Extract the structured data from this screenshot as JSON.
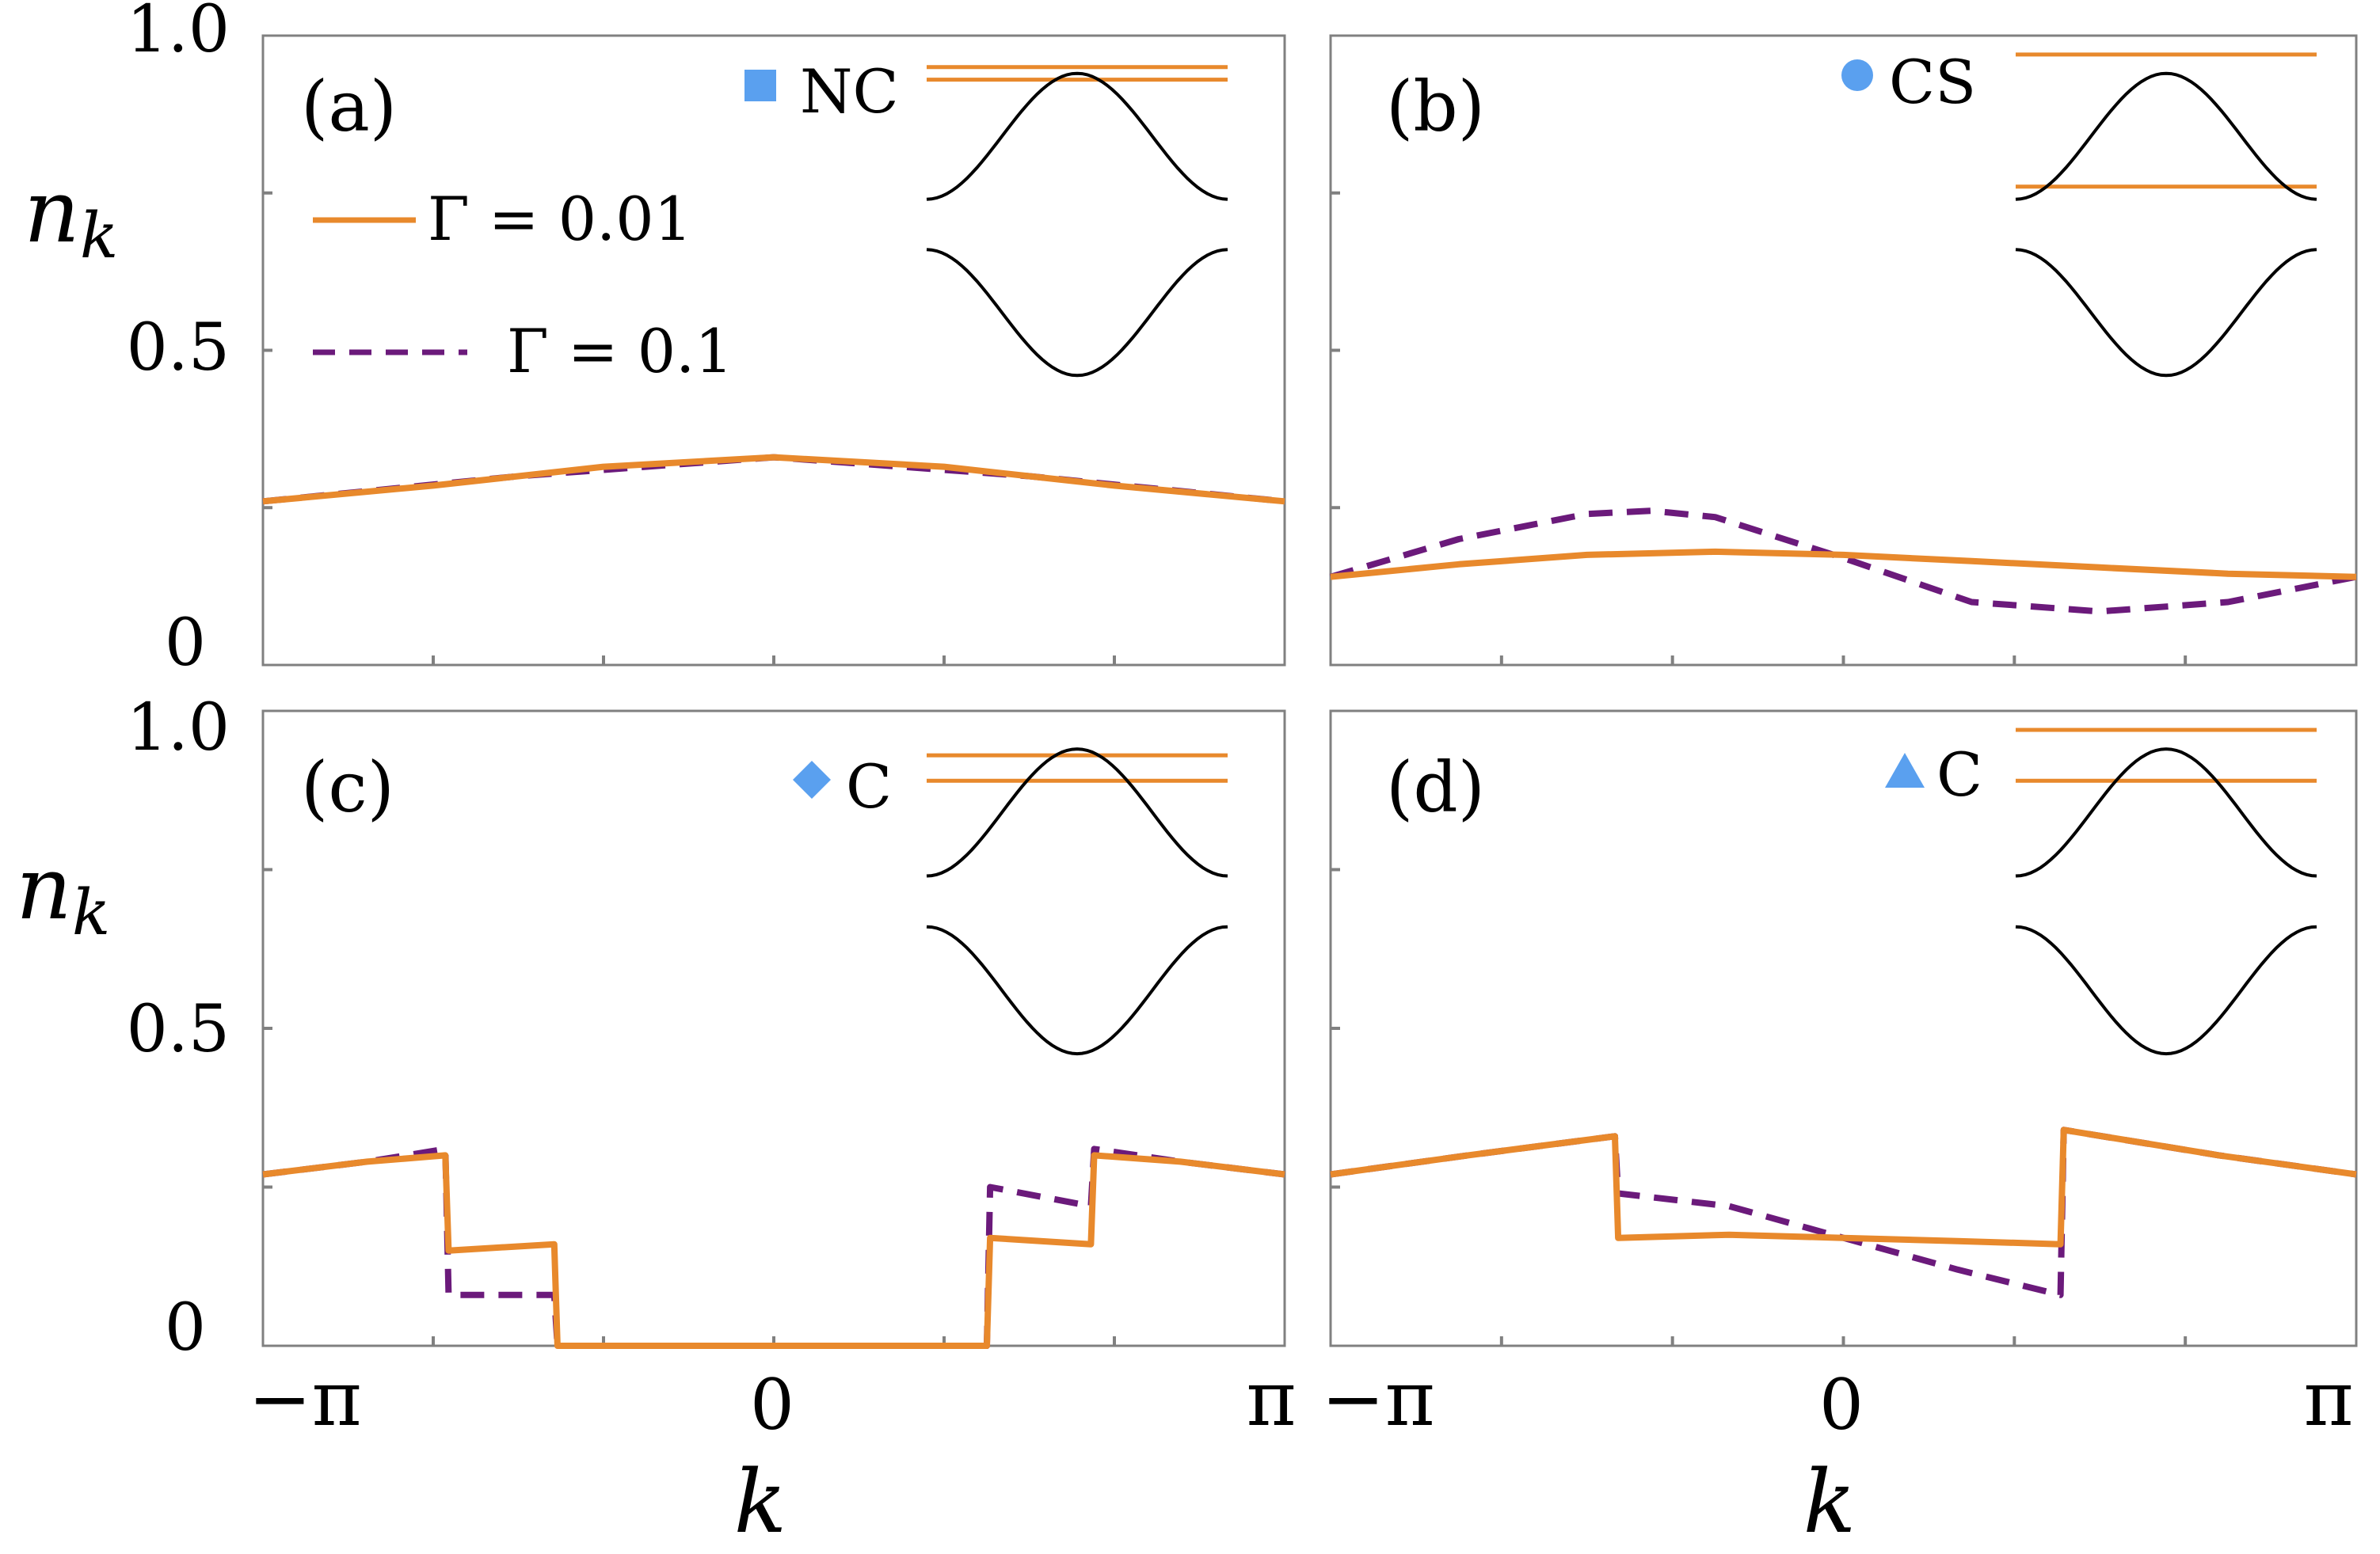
{
  "figure": {
    "ylabel": "n",
    "ylabel_sub": "k",
    "xlabel": "k",
    "x_ticks": [
      "−π",
      "0",
      "π"
    ],
    "y_ticks": [
      "0",
      "0.5",
      "1.0"
    ],
    "colors": {
      "orange": "#e8892c",
      "purple": "#6b1a7b",
      "marker": "#5aa0ef",
      "axis": "#808080",
      "band": "#000000"
    }
  },
  "legend": {
    "solid_label": "Γ = 0.01",
    "dashed_label": "Γ = 0.1"
  },
  "chart_data": [
    {
      "panel": "(a)",
      "type": "line",
      "title": "(a)",
      "marker_shape": "square",
      "marker_label": "NC",
      "xlabel": "k",
      "ylabel": "n_k",
      "xlim": [
        -3.1416,
        3.1416
      ],
      "ylim": [
        0,
        1.0
      ],
      "series": [
        {
          "name": "Γ = 0.01",
          "style": "solid",
          "x": [
            -3.1416,
            -2.0944,
            -1.5708,
            -1.0472,
            0,
            1.0472,
            1.5708,
            2.0944,
            3.1416
          ],
          "y": [
            0.26,
            0.285,
            0.3,
            0.315,
            0.33,
            0.315,
            0.3,
            0.285,
            0.26
          ]
        },
        {
          "name": "Γ = 0.1",
          "style": "dashed",
          "x": [
            -3.1416,
            -1.5708,
            0,
            1.5708,
            3.1416
          ],
          "y": [
            0.26,
            0.3,
            0.33,
            0.3,
            0.26
          ]
        }
      ]
    },
    {
      "panel": "(b)",
      "type": "line",
      "title": "(b)",
      "marker_shape": "circle",
      "marker_label": "CS",
      "xlabel": "k",
      "ylabel": "n_k",
      "xlim": [
        -3.1416,
        3.1416
      ],
      "ylim": [
        0,
        1.0
      ],
      "series": [
        {
          "name": "Γ = 0.01",
          "style": "solid",
          "x": [
            -3.1416,
            -2.3562,
            -1.5708,
            -0.7854,
            0,
            0.7854,
            1.5708,
            2.3562,
            3.1416
          ],
          "y": [
            0.14,
            0.16,
            0.175,
            0.18,
            0.175,
            0.165,
            0.155,
            0.145,
            0.14
          ]
        },
        {
          "name": "Γ = 0.1",
          "style": "dashed",
          "x": [
            -3.1416,
            -2.3562,
            -1.5708,
            -1.1781,
            -0.7854,
            0,
            0.7854,
            1.5708,
            2.3562,
            3.1416
          ],
          "y": [
            0.14,
            0.2,
            0.24,
            0.245,
            0.235,
            0.17,
            0.1,
            0.085,
            0.1,
            0.14
          ]
        }
      ]
    },
    {
      "panel": "(c)",
      "type": "line",
      "title": "(c)",
      "marker_shape": "diamond",
      "marker_label": "C",
      "xlabel": "k",
      "ylabel": "n_k",
      "xlim": [
        -3.1416,
        3.1416
      ],
      "ylim": [
        0,
        1.0
      ],
      "series": [
        {
          "name": "Γ = 0.01",
          "style": "solid",
          "x": [
            -3.1416,
            -2.5,
            -2.02,
            -2.0,
            -1.35,
            -1.33,
            1.31,
            1.33,
            1.95,
            1.97,
            2.5,
            3.1416
          ],
          "y": [
            0.27,
            0.29,
            0.3,
            0.15,
            0.16,
            0.0,
            0.0,
            0.17,
            0.16,
            0.3,
            0.29,
            0.27
          ]
        },
        {
          "name": "Γ = 0.1",
          "style": "dashed",
          "x": [
            -3.1416,
            -2.5,
            -2.02,
            -2.0,
            -1.35,
            -1.33,
            1.31,
            1.33,
            1.95,
            1.97,
            2.5,
            3.1416
          ],
          "y": [
            0.27,
            0.29,
            0.31,
            0.08,
            0.08,
            0.0,
            0.0,
            0.25,
            0.22,
            0.31,
            0.29,
            0.27
          ]
        }
      ]
    },
    {
      "panel": "(d)",
      "type": "line",
      "title": "(d)",
      "marker_shape": "triangle",
      "marker_label": "C",
      "xlabel": "k",
      "ylabel": "n_k",
      "xlim": [
        -3.1416,
        3.1416
      ],
      "ylim": [
        0,
        1.0
      ],
      "series": [
        {
          "name": "Γ = 0.01",
          "style": "solid",
          "x": [
            -3.1416,
            -2.3,
            -1.4,
            -1.38,
            -0.7,
            0,
            0.7,
            1.33,
            1.35,
            2.3,
            3.1416
          ],
          "y": [
            0.27,
            0.3,
            0.33,
            0.17,
            0.175,
            0.17,
            0.165,
            0.16,
            0.34,
            0.3,
            0.27
          ]
        },
        {
          "name": "Γ = 0.1",
          "style": "dashed",
          "x": [
            -3.1416,
            -2.3,
            -1.4,
            -1.38,
            -0.7,
            0,
            0.7,
            1.33,
            1.35,
            2.3,
            3.1416
          ],
          "y": [
            0.27,
            0.3,
            0.33,
            0.24,
            0.22,
            0.17,
            0.12,
            0.08,
            0.34,
            0.3,
            0.27
          ]
        }
      ]
    }
  ],
  "insets": [
    {
      "panel": "(a)",
      "flat_bands": [
        0.93,
        0.95
      ],
      "bands": [
        {
          "mid": 0.84,
          "amp": 0.05,
          "phase": 1
        },
        {
          "mid": 0.56,
          "amp": 0.05,
          "phase": -1
        }
      ]
    },
    {
      "panel": "(b)",
      "flat_bands": [
        0.97,
        0.76
      ],
      "bands": [
        {
          "mid": 0.84,
          "amp": 0.05,
          "phase": 1
        },
        {
          "mid": 0.56,
          "amp": 0.05,
          "phase": -1
        }
      ]
    },
    {
      "panel": "(c)",
      "flat_bands": [
        0.93,
        0.89
      ],
      "bands": [
        {
          "mid": 0.84,
          "amp": 0.05,
          "phase": 1
        },
        {
          "mid": 0.56,
          "amp": 0.05,
          "phase": -1
        }
      ]
    },
    {
      "panel": "(d)",
      "flat_bands": [
        0.97,
        0.89
      ],
      "bands": [
        {
          "mid": 0.84,
          "amp": 0.05,
          "phase": 1
        },
        {
          "mid": 0.56,
          "amp": 0.05,
          "phase": -1
        }
      ]
    }
  ]
}
